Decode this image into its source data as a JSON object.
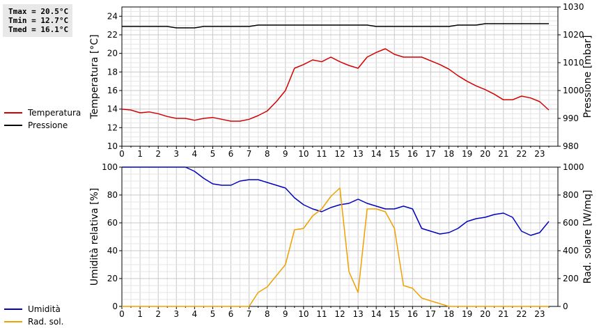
{
  "stats": {
    "tmax": "Tmax = 20.5°C",
    "tmin": "Tmin = 12.7°C",
    "tmed": "Tmed = 16.1°C"
  },
  "legend_top": [
    {
      "label": "Temperatura",
      "color": "#d40000"
    },
    {
      "label": "Pressione",
      "color": "#000000"
    }
  ],
  "legend_bottom": [
    {
      "label": "Umidità",
      "color": "#0000c0"
    },
    {
      "label": "Rad. sol.",
      "color": "#f0a000"
    }
  ],
  "chart_data": [
    {
      "type": "line",
      "xlim": [
        0,
        24
      ],
      "xticks": [
        "0",
        "1",
        "2",
        "3",
        "4",
        "5",
        "6",
        "7",
        "8",
        "9",
        "10",
        "11",
        "12",
        "13",
        "14",
        "15",
        "16",
        "17",
        "18",
        "19",
        "20",
        "21",
        "22",
        "23"
      ],
      "ylabel": "Temperatura [°C]",
      "ylim": [
        10,
        25
      ],
      "yticks": [
        10,
        12,
        14,
        16,
        18,
        20,
        22,
        24
      ],
      "y2label": "Pressione [mbar]",
      "y2lim": [
        980,
        1030
      ],
      "y2ticks": [
        980,
        990,
        1000,
        1010,
        1020,
        1030
      ],
      "grid": true,
      "series": [
        {
          "name": "Temperatura",
          "axis": "left",
          "color": "#d40000",
          "x": [
            0,
            0.5,
            1,
            1.5,
            2,
            2.5,
            3,
            3.5,
            4,
            4.5,
            5,
            5.5,
            6,
            6.5,
            7,
            7.5,
            8,
            8.5,
            9,
            9.5,
            10,
            10.5,
            11,
            11.5,
            12,
            12.5,
            13,
            13.5,
            14,
            14.5,
            15,
            15.5,
            16,
            16.5,
            17,
            17.5,
            18,
            18.5,
            19,
            19.5,
            20,
            20.5,
            21,
            21.5,
            22,
            22.5,
            23,
            23.5
          ],
          "y": [
            14.0,
            13.9,
            13.6,
            13.7,
            13.5,
            13.2,
            13.0,
            13.0,
            12.8,
            13.0,
            13.1,
            12.9,
            12.7,
            12.7,
            12.9,
            13.3,
            13.8,
            14.8,
            16.0,
            18.4,
            18.8,
            19.3,
            19.1,
            19.6,
            19.1,
            18.7,
            18.4,
            19.6,
            20.1,
            20.5,
            19.9,
            19.6,
            19.6,
            19.6,
            19.2,
            18.8,
            18.3,
            17.6,
            17.0,
            16.5,
            16.1,
            15.6,
            15.0,
            15.0,
            15.4,
            15.2,
            14.8,
            13.9
          ]
        },
        {
          "name": "Pressione",
          "axis": "right",
          "color": "#000000",
          "x": [
            0,
            0.5,
            1,
            1.5,
            2,
            2.5,
            3,
            3.5,
            4,
            4.5,
            5,
            5.5,
            6,
            6.5,
            7,
            7.5,
            8,
            8.5,
            9,
            9.5,
            10,
            10.5,
            11,
            11.5,
            12,
            12.5,
            13,
            13.5,
            14,
            14.5,
            15,
            15.5,
            16,
            16.5,
            17,
            17.5,
            18,
            18.5,
            19,
            19.5,
            20,
            20.5,
            21,
            21.5,
            22,
            22.5,
            23,
            23.5
          ],
          "y": [
            1023,
            1023,
            1023,
            1023,
            1023,
            1023,
            1022.5,
            1022.5,
            1022.5,
            1023,
            1023,
            1023,
            1023,
            1023,
            1023,
            1023.5,
            1023.5,
            1023.5,
            1023.5,
            1023.5,
            1023.5,
            1023.5,
            1023.5,
            1023.5,
            1023.5,
            1023.5,
            1023.5,
            1023.5,
            1023,
            1023,
            1023,
            1023,
            1023,
            1023,
            1023,
            1023,
            1023,
            1023.5,
            1023.5,
            1023.5,
            1024,
            1024,
            1024,
            1024,
            1024,
            1024,
            1024,
            1024
          ]
        }
      ]
    },
    {
      "type": "line",
      "xlim": [
        0,
        24
      ],
      "xticks": [
        "0",
        "1",
        "2",
        "3",
        "4",
        "5",
        "6",
        "7",
        "8",
        "9",
        "10",
        "11",
        "12",
        "13",
        "14",
        "15",
        "16",
        "17",
        "18",
        "19",
        "20",
        "21",
        "22",
        "23"
      ],
      "ylabel": "Umidità relativa [%]",
      "ylim": [
        0,
        100
      ],
      "yticks": [
        0,
        20,
        40,
        60,
        80,
        100
      ],
      "y2label": "Rad. solare [W/mq]",
      "y2lim": [
        0,
        1000
      ],
      "y2ticks": [
        0,
        200,
        400,
        600,
        800,
        1000
      ],
      "grid": true,
      "series": [
        {
          "name": "Umidità",
          "axis": "left",
          "color": "#0000c0",
          "x": [
            0,
            0.5,
            1,
            1.5,
            2,
            2.5,
            3,
            3.5,
            4,
            4.5,
            5,
            5.5,
            6,
            6.5,
            7,
            7.5,
            8,
            8.5,
            9,
            9.5,
            10,
            10.5,
            11,
            11.5,
            12,
            12.5,
            13,
            13.5,
            14,
            14.5,
            15,
            15.5,
            16,
            16.5,
            17,
            17.5,
            18,
            18.5,
            19,
            19.5,
            20,
            20.5,
            21,
            21.5,
            22,
            22.5,
            23,
            23.5
          ],
          "y": [
            100,
            100,
            100,
            100,
            100,
            100,
            100,
            100,
            97,
            92,
            88,
            87,
            87,
            90,
            91,
            91,
            89,
            87,
            85,
            78,
            73,
            70,
            68,
            71,
            73,
            74,
            77,
            74,
            72,
            70,
            70,
            72,
            70,
            56,
            54,
            52,
            53,
            56,
            61,
            63,
            64,
            66,
            67,
            64,
            54,
            51,
            53,
            61
          ]
        },
        {
          "name": "Rad. sol.",
          "axis": "right",
          "color": "#f0a000",
          "x": [
            0,
            1,
            2,
            3,
            4,
            5,
            6,
            6.5,
            7,
            7.5,
            8,
            8.5,
            9,
            9.5,
            10,
            10.5,
            11,
            11.5,
            12,
            12.5,
            13,
            13.5,
            14,
            14.5,
            15,
            15.5,
            16,
            16.5,
            17,
            17.5,
            18,
            19,
            20,
            21,
            22,
            23,
            23.5
          ],
          "y": [
            0,
            0,
            0,
            0,
            0,
            0,
            0,
            0,
            0,
            100,
            140,
            220,
            300,
            550,
            560,
            650,
            700,
            790,
            850,
            250,
            100,
            700,
            700,
            680,
            560,
            150,
            130,
            60,
            40,
            20,
            0,
            0,
            0,
            0,
            0,
            0,
            0
          ]
        }
      ]
    }
  ]
}
